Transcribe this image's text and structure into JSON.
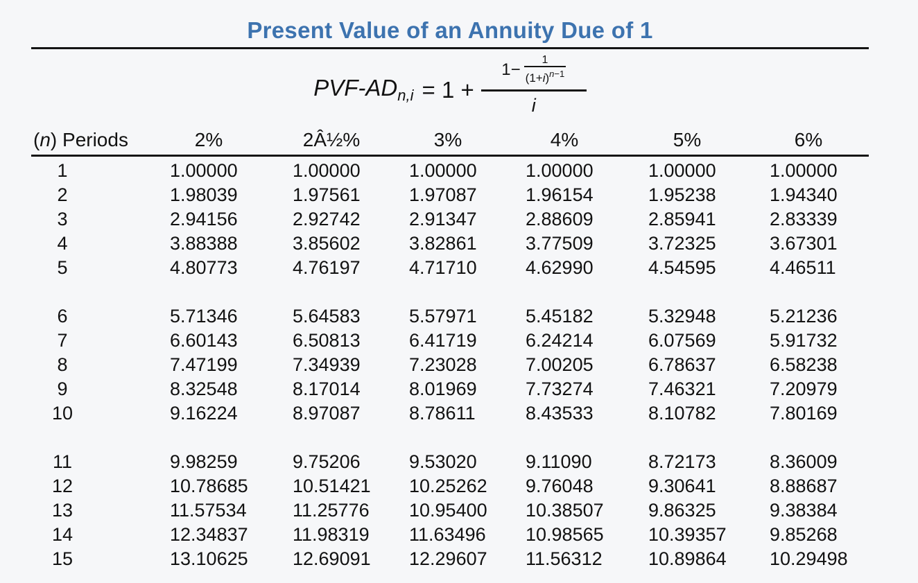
{
  "page": {
    "title": "Present Value of an Annuity Due of 1"
  },
  "formula": {
    "lhs_base": "PVF-AD",
    "lhs_subscript": "n,i",
    "equals_part": "= 1 +",
    "numerator_prefix": "1−",
    "inner_numerator": "1",
    "inner_den_open": "(1+",
    "inner_den_i": "i",
    "inner_den_close": ")",
    "inner_den_exp_n": "n",
    "inner_den_exp_rest": "−1",
    "denominator": "i"
  },
  "table": {
    "period_header_open": "(",
    "period_header_n": "n",
    "period_header_close": ")",
    "period_header_label": "Periods",
    "rate_headers": [
      "2%",
      "2Â½%",
      "3%",
      "4%",
      "5%",
      "6%"
    ],
    "groups": [
      {
        "rows": [
          {
            "n": "1",
            "values": [
              "1.00000",
              "1.00000",
              "1.00000",
              "1.00000",
              "1.00000",
              "1.00000"
            ]
          },
          {
            "n": "2",
            "values": [
              "1.98039",
              "1.97561",
              "1.97087",
              "1.96154",
              "1.95238",
              "1.94340"
            ]
          },
          {
            "n": "3",
            "values": [
              "2.94156",
              "2.92742",
              "2.91347",
              "2.88609",
              "2.85941",
              "2.83339"
            ]
          },
          {
            "n": "4",
            "values": [
              "3.88388",
              "3.85602",
              "3.82861",
              "3.77509",
              "3.72325",
              "3.67301"
            ]
          },
          {
            "n": "5",
            "values": [
              "4.80773",
              "4.76197",
              "4.71710",
              "4.62990",
              "4.54595",
              "4.46511"
            ]
          }
        ]
      },
      {
        "rows": [
          {
            "n": "6",
            "values": [
              "5.71346",
              "5.64583",
              "5.57971",
              "5.45182",
              "5.32948",
              "5.21236"
            ]
          },
          {
            "n": "7",
            "values": [
              "6.60143",
              "6.50813",
              "6.41719",
              "6.24214",
              "6.07569",
              "5.91732"
            ]
          },
          {
            "n": "8",
            "values": [
              "7.47199",
              "7.34939",
              "7.23028",
              "7.00205",
              "6.78637",
              "6.58238"
            ]
          },
          {
            "n": "9",
            "values": [
              "8.32548",
              "8.17014",
              "8.01969",
              "7.73274",
              "7.46321",
              "7.20979"
            ]
          },
          {
            "n": "10",
            "values": [
              "9.16224",
              "8.97087",
              "8.78611",
              "8.43533",
              "8.10782",
              "7.80169"
            ]
          }
        ]
      },
      {
        "rows": [
          {
            "n": "11",
            "values": [
              "9.98259",
              "9.75206",
              "9.53020",
              "9.11090",
              "8.72173",
              "8.36009"
            ]
          },
          {
            "n": "12",
            "values": [
              "10.78685",
              "10.51421",
              "10.25262",
              "9.76048",
              "9.30641",
              "8.88687"
            ]
          },
          {
            "n": "13",
            "values": [
              "11.57534",
              "11.25776",
              "10.95400",
              "10.38507",
              "9.86325",
              "9.38384"
            ]
          },
          {
            "n": "14",
            "values": [
              "12.34837",
              "11.98319",
              "11.63496",
              "10.98565",
              "10.39357",
              "9.85268"
            ]
          },
          {
            "n": "15",
            "values": [
              "13.10625",
              "12.69091",
              "12.29607",
              "11.56312",
              "10.89864",
              "10.29498"
            ]
          }
        ]
      }
    ]
  }
}
